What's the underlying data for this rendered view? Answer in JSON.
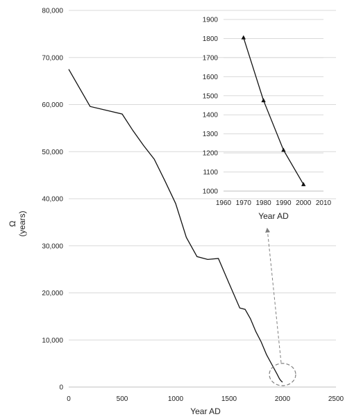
{
  "chart_data": [
    {
      "type": "line",
      "xlabel": "Year AD",
      "ylabel": "Ω",
      "ylabel_unit": "(years)",
      "xlim": [
        0,
        2500
      ],
      "ylim": [
        0,
        80000
      ],
      "xticks": [
        "0",
        "500",
        "1000",
        "1500",
        "2000",
        "2500"
      ],
      "yticks": [
        "0",
        "10,000",
        "20,000",
        "30,000",
        "40,000",
        "50,000",
        "60,000",
        "70,000",
        "80,000"
      ],
      "grid": true,
      "series": [
        {
          "x": [
            0,
            200,
            500,
            600,
            700,
            800,
            900,
            1000,
            1100,
            1200,
            1300,
            1400,
            1500,
            1600,
            1650,
            1700,
            1750,
            1800,
            1850,
            1900,
            1950,
            1970,
            1980,
            1990,
            2000
          ],
          "y": [
            67500,
            59600,
            58000,
            54500,
            51300,
            48400,
            43800,
            39000,
            31800,
            27700,
            27100,
            27300,
            22000,
            16800,
            16500,
            14500,
            11800,
            9600,
            6900,
            4800,
            2700,
            1800,
            1480,
            1220,
            1035
          ]
        }
      ]
    },
    {
      "type": "line",
      "xlabel": "Year AD",
      "ylabel": "",
      "xlim": [
        1960,
        2010
      ],
      "ylim": [
        1000,
        1900
      ],
      "xticks": [
        "1960",
        "1970",
        "1980",
        "1990",
        "2000",
        "2010"
      ],
      "yticks": [
        "1000",
        "1100",
        "1200",
        "1300",
        "1400",
        "1500",
        "1600",
        "1700",
        "1800",
        "1900"
      ],
      "grid": true,
      "marker": "triangle",
      "series": [
        {
          "x": [
            1970,
            1980,
            1990,
            2000
          ],
          "y": [
            1805,
            1475,
            1215,
            1035
          ]
        }
      ]
    }
  ]
}
